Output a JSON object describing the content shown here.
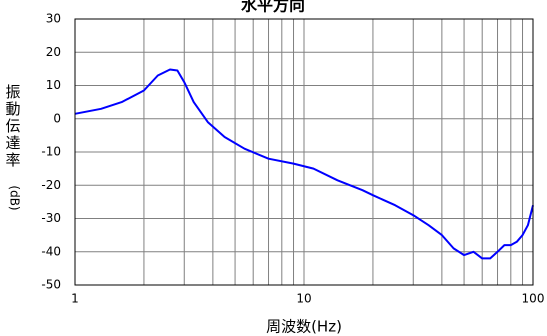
{
  "chart_data": {
    "type": "line",
    "title": "水平方向",
    "xlabel": "周波数(Hz)",
    "ylabel": "振動伝達率",
    "ylabel_unit": "(dB)",
    "x_scale": "log",
    "xlim": [
      1,
      100
    ],
    "ylim": [
      -50,
      30
    ],
    "x_ticks": [
      1,
      10,
      100
    ],
    "y_ticks": [
      30,
      20,
      10,
      0,
      -10,
      -20,
      -30,
      -40,
      -50
    ],
    "grid": true,
    "line_color": "#0000ff",
    "series": [
      {
        "x": [
          1,
          1.3,
          1.6,
          2,
          2.3,
          2.6,
          2.8,
          3,
          3.3,
          3.8,
          4.5,
          5.5,
          7,
          9,
          11,
          14,
          18,
          20,
          25,
          30,
          35,
          40,
          45,
          50,
          55,
          60,
          65,
          70,
          75,
          80,
          85,
          90,
          95,
          100
        ],
        "y": [
          1.5,
          3,
          5,
          8.5,
          13,
          14.8,
          14.5,
          11,
          5,
          -1,
          -5.5,
          -9,
          -12,
          -13.5,
          -15,
          -18.5,
          -21.5,
          -23,
          -26,
          -29,
          -32,
          -35,
          -39,
          -41,
          -40,
          -42,
          -42,
          -40,
          -38,
          -38,
          -37,
          -35,
          -32,
          -26
        ]
      }
    ]
  }
}
